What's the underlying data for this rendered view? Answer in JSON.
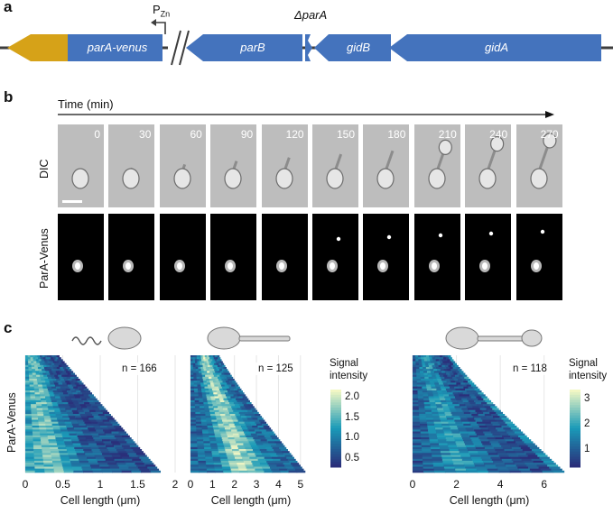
{
  "panels": {
    "a": "a",
    "b": "b",
    "c": "c"
  },
  "panel_a": {
    "promoter": "P",
    "promoter_sub": "Zn",
    "deletion_label": "ΔparA",
    "genes": [
      "parA-venus",
      "parB",
      "gidB",
      "gidA"
    ]
  },
  "panel_b": {
    "time_label": "Time (min)",
    "timepoints": [
      "0",
      "30",
      "60",
      "90",
      "120",
      "150",
      "180",
      "210",
      "240",
      "270"
    ],
    "row_labels": [
      "DIC",
      "ParA-Venus"
    ]
  },
  "panel_c": {
    "y_label": "ParA-Venus",
    "x_label": "Cell length (μm)",
    "colorbar_title_line1": "Signal",
    "colorbar_title_line2": "intensity",
    "colors": {
      "low": "#2a2f7a",
      "mid": "#1a9ab8",
      "high": "#f2f7c4"
    },
    "icons": [
      "swarmer-cell-icon",
      "stalked-cell-icon",
      "predivisional-cell-icon"
    ]
  },
  "chart_data": [
    {
      "type": "heatmap",
      "title": "",
      "n_label": "n = 166",
      "n": 166,
      "xlabel": "Cell length (μm)",
      "ylabel": "ParA-Venus",
      "xlim": [
        0,
        2
      ],
      "xticks": [
        "0",
        "0.5",
        "1",
        "1.5",
        "2"
      ],
      "max_length": 1.8
    },
    {
      "type": "heatmap",
      "title": "",
      "n_label": "n = 125",
      "n": 125,
      "xlabel": "Cell length (μm)",
      "xlim": [
        0,
        5.5
      ],
      "xticks": [
        "0",
        "1",
        "2",
        "3",
        "4",
        "5"
      ],
      "max_length": 5.2,
      "colorbar_ticks": [
        "2.0",
        "1.5",
        "1.0",
        "0.5"
      ],
      "colorbar_range": [
        0.3,
        2.2
      ]
    },
    {
      "type": "heatmap",
      "title": "",
      "n_label": "n = 118",
      "n": 118,
      "xlabel": "Cell length (μm)",
      "xlim": [
        0,
        7
      ],
      "xticks": [
        "0",
        "2",
        "4",
        "6"
      ],
      "max_length": 6.9,
      "colorbar_ticks": [
        "3",
        "2",
        "1"
      ],
      "colorbar_range": [
        0.3,
        3.4
      ]
    }
  ]
}
